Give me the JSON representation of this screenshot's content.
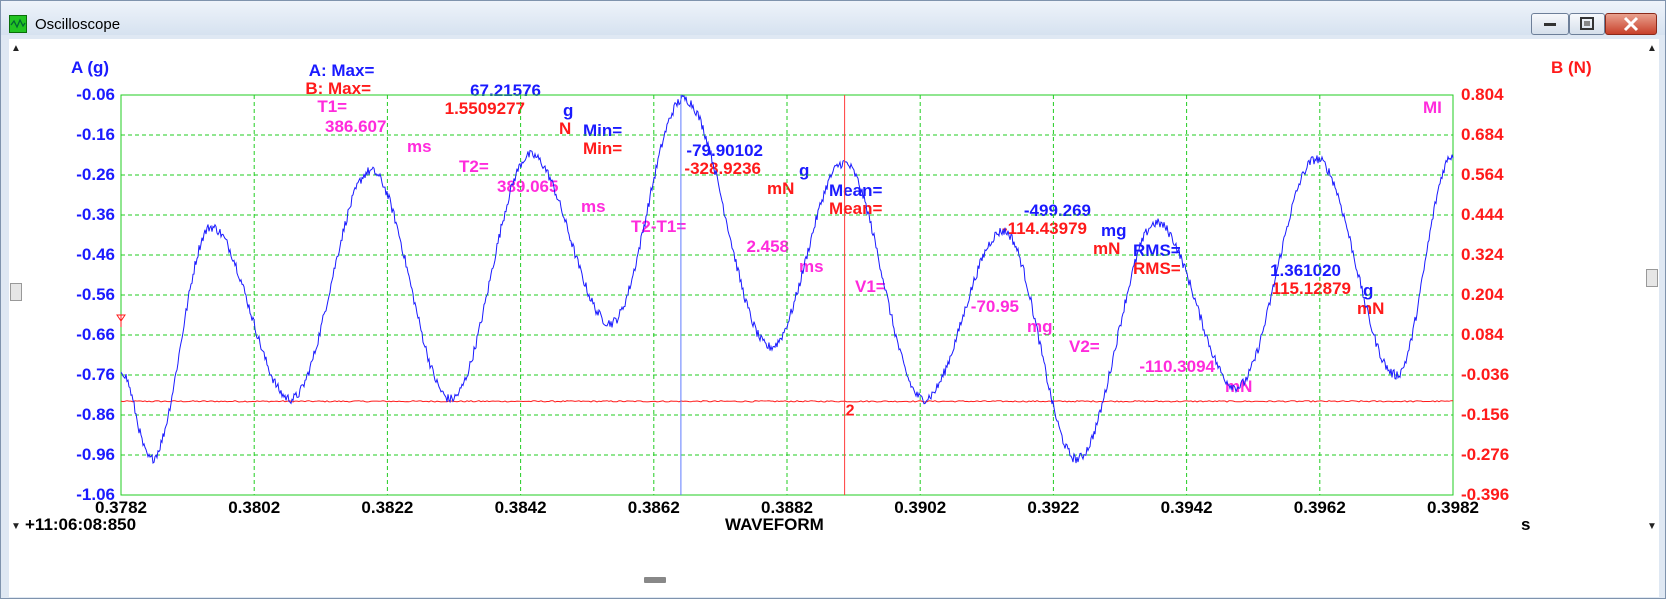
{
  "window": {
    "title": "Oscilloscope",
    "buttons": {
      "minimize": "minimize",
      "maximize": "maximize",
      "close": "close"
    }
  },
  "header": {
    "line_a": {
      "label": "A: Max=",
      "max_value": "67.21576",
      "max_unit": "g",
      "min_label": "Min=",
      "min_value": "-79.90102",
      "min_unit": "g",
      "mean_label": "Mean=",
      "mean_value": "-499.269",
      "mean_unit": "mg",
      "rms_label": "RMS=",
      "rms_value": "1.361020",
      "rms_unit": "g"
    },
    "line_b": {
      "label": "B: Max=",
      "max_value": "1.5509277",
      "max_unit": "N",
      "min_label": "Min=",
      "min_value": "-328.9236",
      "min_unit": "mN",
      "mean_label": "Mean=",
      "mean_value": "-114.43979",
      "mean_unit": "mN",
      "rms_label": "RMS=",
      "rms_value": "115.12879",
      "rms_unit": "mN"
    },
    "line_t": {
      "t1_label": "T1=",
      "t1_value": "386.607",
      "t1_unit": "ms",
      "t2_label": "T2=",
      "t2_value": "389.065",
      "t2_unit": "ms",
      "dt_label": "T2-T1=",
      "dt_value": "2.458",
      "dt_unit": "ms",
      "v1_label": "V1=",
      "v1_value": "-70.95",
      "v1_unit": "mg",
      "v2_label": "V2=",
      "v2_value": "-110.3094",
      "v2_unit": "mN"
    }
  },
  "chart_data": {
    "type": "line",
    "left_axis_label": "A (g)",
    "right_axis_label": "B (N)",
    "x_title": "WAVEFORM",
    "x_unit": "s",
    "start_time": "+11:06:08:850",
    "marker_label": "MI",
    "cursor2_label": "2",
    "xlim": [
      0.3782,
      0.3982
    ],
    "y_left_lim": [
      -1.06,
      -0.06
    ],
    "y_right_lim": [
      -0.396,
      0.804
    ],
    "x_ticks": [
      "0.3782",
      "0.3802",
      "0.3822",
      "0.3842",
      "0.3862",
      "0.3882",
      "0.3902",
      "0.3922",
      "0.3942",
      "0.3962",
      "0.3982"
    ],
    "y_left_ticks": [
      "-0.06",
      "-0.16",
      "-0.26",
      "-0.36",
      "-0.46",
      "-0.56",
      "-0.66",
      "-0.76",
      "-0.86",
      "-0.96",
      "-1.06"
    ],
    "y_right_ticks": [
      "0.804",
      "0.684",
      "0.564",
      "0.444",
      "0.324",
      "0.204",
      "0.084",
      "-0.036",
      "-0.156",
      "-0.276",
      "-0.396"
    ],
    "grid": true,
    "cursor_t1_x": 0.386607,
    "cursor_t2_x": 0.389065,
    "series": [
      {
        "color": "#1a1aff",
        "axis": "left",
        "extrema": [
          [
            0.3782,
            -0.75
          ],
          [
            0.37865,
            -0.97
          ],
          [
            0.37955,
            -0.39
          ],
          [
            0.38075,
            -0.82
          ],
          [
            0.38195,
            -0.25
          ],
          [
            0.38315,
            -0.82
          ],
          [
            0.38435,
            -0.21
          ],
          [
            0.38555,
            -0.63
          ],
          [
            0.38665,
            -0.07
          ],
          [
            0.38795,
            -0.69
          ],
          [
            0.38905,
            -0.23
          ],
          [
            0.39025,
            -0.82
          ],
          [
            0.39145,
            -0.4
          ],
          [
            0.39255,
            -0.97
          ],
          [
            0.39375,
            -0.38
          ],
          [
            0.39495,
            -0.79
          ],
          [
            0.39615,
            -0.22
          ],
          [
            0.39735,
            -0.76
          ],
          [
            0.3982,
            -0.21
          ]
        ],
        "noise": 0.012
      },
      {
        "color": "#ff1a1a",
        "axis": "right",
        "level": -0.115,
        "noise": 0.002
      }
    ]
  }
}
